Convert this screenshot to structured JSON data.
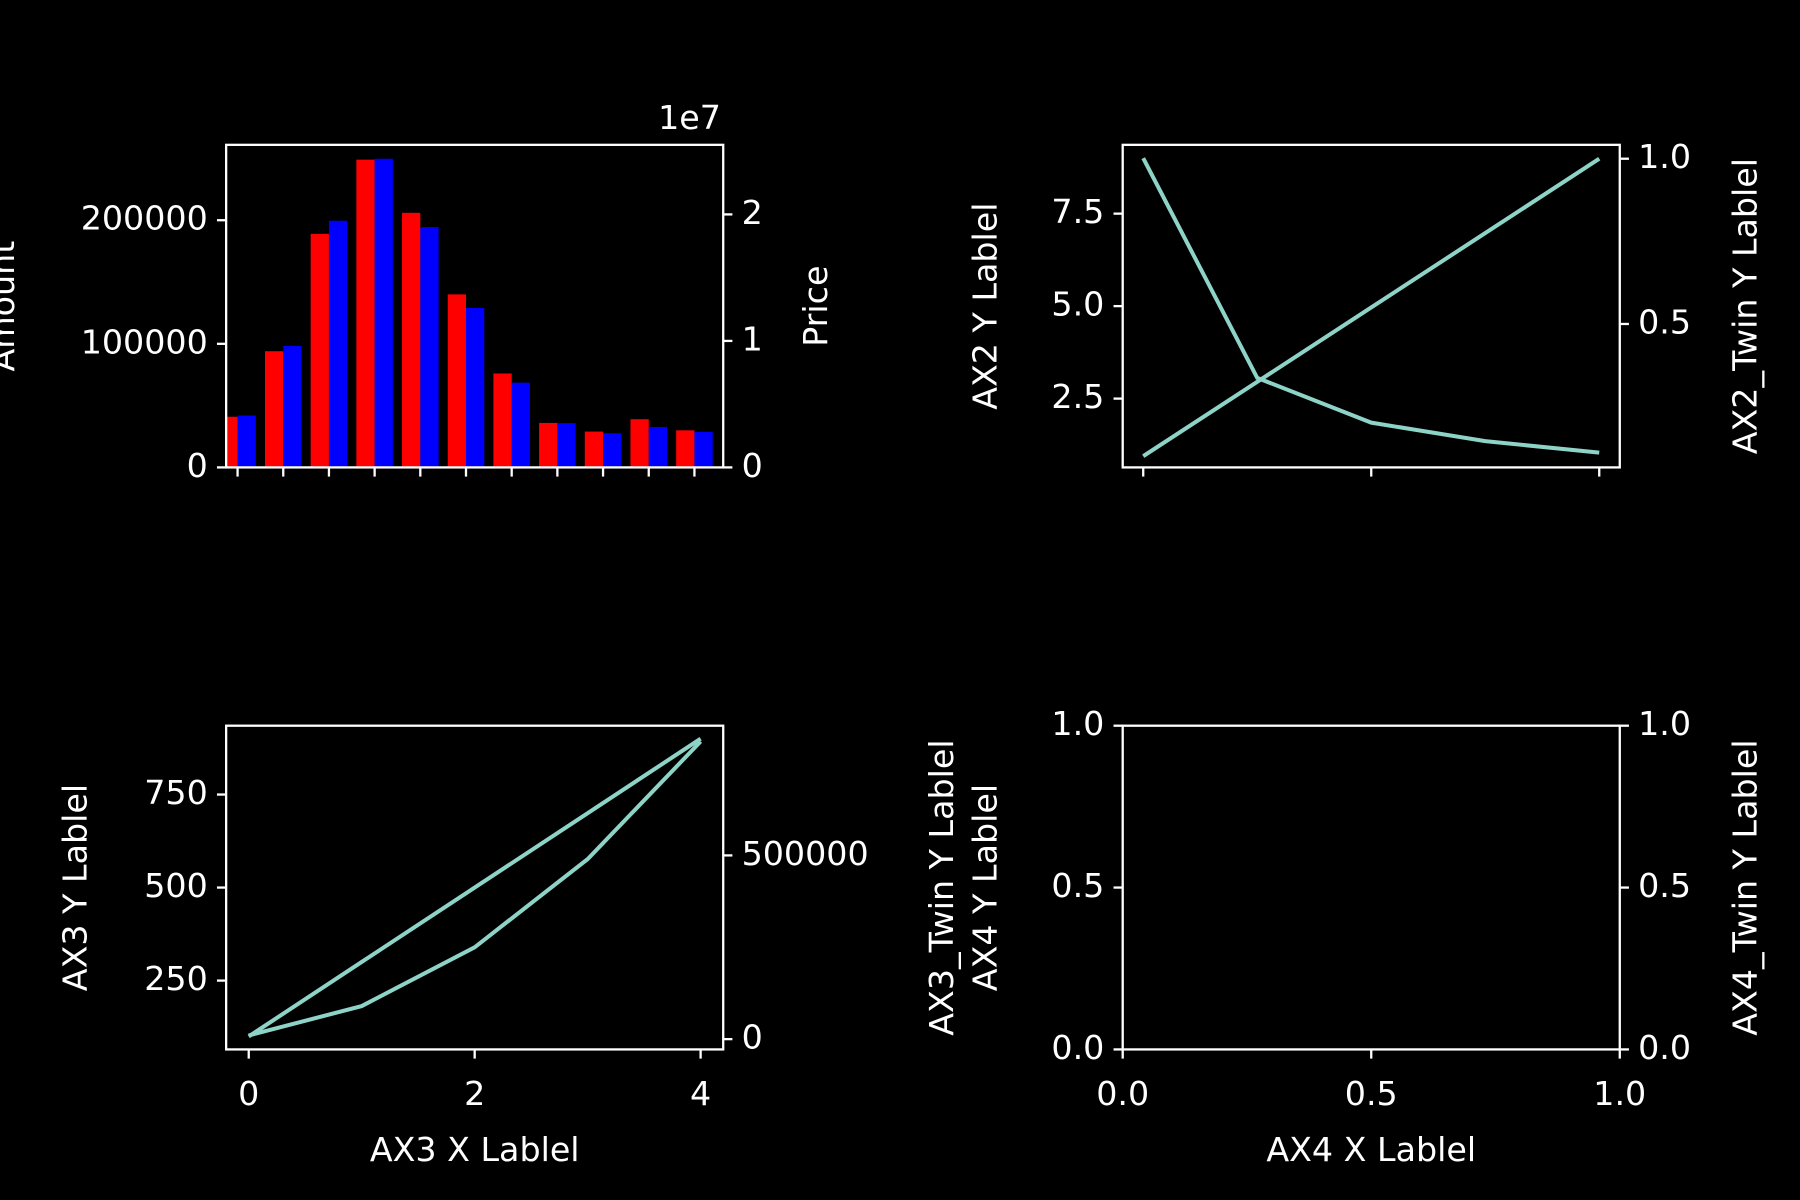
{
  "chart_data": [
    {
      "type": "bar",
      "categories": [
        null,
        null,
        null,
        null,
        null,
        null,
        null,
        null,
        null,
        null,
        null
      ],
      "ylabel": "Amount",
      "y2label": "Price",
      "y2_offset_label": "1e7",
      "ylim": [
        0,
        261000
      ],
      "yticks": [
        0,
        100000,
        200000
      ],
      "y2lim": [
        0,
        25500000
      ],
      "y2ticks": [
        0,
        {
          "value": 10000000,
          "label": "1"
        },
        {
          "value": 20000000,
          "label": "2"
        }
      ],
      "series": [
        {
          "color": "#ff0000",
          "values": [
            41000,
            94000,
            189000,
            249000,
            206000,
            140000,
            76000,
            36000,
            29000,
            39000,
            30000
          ]
        },
        {
          "color": "#0000ff",
          "axis": "y2",
          "values": [
            4100000,
            9600000,
            19500000,
            24400000,
            19000000,
            12600000,
            6700000,
            3500000,
            2700000,
            3200000,
            2800000
          ]
        }
      ]
    },
    {
      "type": "line",
      "ylabel": "AX2 Y Lablel",
      "y2label": "AX2_Twin Y Lablel",
      "x": [
        0,
        1,
        2,
        3,
        4
      ],
      "xlim": [
        -0.18,
        4.18
      ],
      "xticks": [
        0,
        2,
        4
      ],
      "show_xtick_labels": false,
      "ylim": [
        0.64,
        9.36
      ],
      "yticks": [
        {
          "value": 2.5,
          "label": "2.5"
        },
        {
          "value": 5,
          "label": "5.0"
        },
        {
          "value": 7.5,
          "label": "7.5"
        }
      ],
      "y2lim": [
        0.066,
        1.042
      ],
      "y2ticks": [
        0.5,
        {
          "value": 1,
          "label": "1.0"
        }
      ],
      "series": [
        {
          "color": "#8dd3c7",
          "values": [
            9.0,
            3.06,
            1.85,
            1.35,
            1.04
          ]
        },
        {
          "color": "#8dd3c7",
          "axis": "y2",
          "values": [
            0.1,
            0.325,
            0.55,
            0.775,
            1.0
          ]
        }
      ]
    },
    {
      "type": "line",
      "ylabel": "AX3 Y Lablel",
      "xlabel": "AX3 X Lablel",
      "y2label": "AX3_Twin Y Lablel",
      "x": [
        0,
        1,
        2,
        3,
        4
      ],
      "xlim": [
        -0.2,
        4.2
      ],
      "xticks": [
        0,
        2,
        4
      ],
      "show_xtick_labels": true,
      "ylim": [
        65,
        935
      ],
      "yticks": [
        250,
        500,
        750
      ],
      "y2lim": [
        -28000,
        853000
      ],
      "y2ticks": [
        0,
        500000
      ],
      "series": [
        {
          "color": "#8dd3c7",
          "values": [
            100,
            300,
            500,
            700,
            900
          ]
        },
        {
          "color": "#8dd3c7",
          "axis": "y2",
          "values": [
            10000,
            90000,
            250000,
            490000,
            810000
          ]
        }
      ]
    },
    {
      "type": "line",
      "ylabel": "AX4 Y Lablel",
      "xlabel": "AX4 X Lablel",
      "y2label": "AX4_Twin Y Lablel",
      "x": [],
      "xlim": [
        0,
        1
      ],
      "xticks": [
        {
          "value": 0,
          "label": "0.0"
        },
        0.5,
        {
          "value": 1,
          "label": "1.0"
        }
      ],
      "show_xtick_labels": true,
      "ylim": [
        0,
        1
      ],
      "yticks": [
        {
          "value": 0,
          "label": "0.0"
        },
        0.5,
        {
          "value": 1,
          "label": "1.0"
        }
      ],
      "y2lim": [
        0,
        1
      ],
      "y2ticks": [
        {
          "value": 0,
          "label": "0.0"
        },
        0.5,
        {
          "value": 1,
          "label": "1.0"
        }
      ],
      "series": []
    }
  ]
}
